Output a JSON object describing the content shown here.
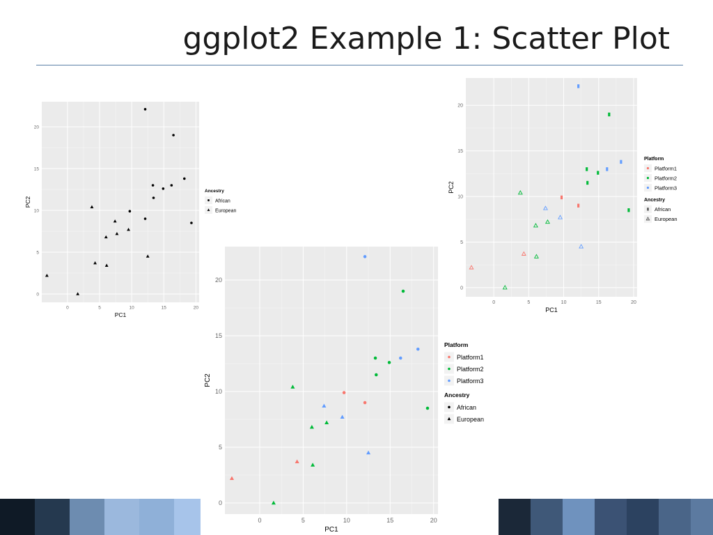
{
  "slide": {
    "title": "ggplot2 Example 1: Scatter Plot"
  },
  "colors": {
    "panel": "#ebebeb",
    "grid": "#ffffff",
    "Platform1": "#f8766d",
    "Platform2": "#00ba38",
    "Platform3": "#619cff",
    "mono": "#000000"
  },
  "chart_data": [
    {
      "id": "plot-bw",
      "type": "scatter",
      "title": "",
      "xlabel": "PC1",
      "ylabel": "PC2",
      "xlim": [
        -4,
        20.5
      ],
      "ylim": [
        -1,
        23
      ],
      "xticks": [
        0,
        5,
        10,
        15,
        20
      ],
      "yticks": [
        0,
        5,
        10,
        15,
        20
      ],
      "grid": true,
      "legend": {
        "placement": "right",
        "groups": [
          {
            "title": "Ancestry",
            "entries": [
              {
                "label": "African",
                "shape": "dot",
                "color": "#000000"
              },
              {
                "label": "European",
                "shape": "triangle",
                "color": "#000000"
              }
            ]
          }
        ]
      },
      "series": [
        {
          "name": "African",
          "shape": "dot",
          "color": "#000000",
          "points": [
            [
              12.1,
              22.1
            ],
            [
              16.5,
              19.0
            ],
            [
              13.3,
              13.0
            ],
            [
              16.2,
              13.0
            ],
            [
              14.9,
              12.6
            ],
            [
              18.2,
              13.8
            ],
            [
              13.4,
              11.5
            ],
            [
              9.7,
              9.9
            ],
            [
              12.1,
              9.0
            ],
            [
              19.3,
              8.5
            ]
          ]
        },
        {
          "name": "European",
          "shape": "triangle",
          "color": "#000000",
          "points": [
            [
              -3.2,
              2.2
            ],
            [
              1.6,
              0.0
            ],
            [
              3.8,
              10.4
            ],
            [
              4.3,
              3.7
            ],
            [
              6.0,
              6.8
            ],
            [
              6.1,
              3.4
            ],
            [
              7.4,
              8.7
            ],
            [
              7.7,
              7.2
            ],
            [
              9.5,
              7.7
            ],
            [
              12.5,
              4.5
            ]
          ]
        }
      ]
    },
    {
      "id": "plot-small-color",
      "type": "scatter",
      "title": "",
      "xlabel": "PC1",
      "ylabel": "PC2",
      "xlim": [
        -4,
        20.5
      ],
      "ylim": [
        -1,
        23
      ],
      "xticks": [
        0,
        5,
        10,
        15,
        20
      ],
      "yticks": [
        0,
        5,
        10,
        15,
        20
      ],
      "grid": true,
      "legend": {
        "placement": "right",
        "groups": [
          {
            "title": "Platform",
            "entries": [
              {
                "label": "Platform1",
                "shape": "dot",
                "color": "#f8766d"
              },
              {
                "label": "Platform2",
                "shape": "dot",
                "color": "#00ba38"
              },
              {
                "label": "Platform3",
                "shape": "dot",
                "color": "#619cff"
              }
            ]
          },
          {
            "title": "Ancestry",
            "entries": [
              {
                "label": "African",
                "shape": "bar",
                "color": "#555555"
              },
              {
                "label": "European",
                "shape": "triangle-open",
                "color": "#555555"
              }
            ]
          }
        ]
      },
      "series": [
        {
          "name": "Platform1 African",
          "shape": "bar",
          "color": "#f8766d",
          "points": [
            [
              9.7,
              9.9
            ],
            [
              12.1,
              9.0
            ]
          ]
        },
        {
          "name": "Platform1 European",
          "shape": "triangle-open",
          "color": "#f8766d",
          "points": [
            [
              -3.2,
              2.2
            ],
            [
              4.3,
              3.7
            ]
          ]
        },
        {
          "name": "Platform2 African",
          "shape": "bar",
          "color": "#00ba38",
          "points": [
            [
              16.5,
              19.0
            ],
            [
              13.3,
              13.0
            ],
            [
              14.9,
              12.6
            ],
            [
              13.4,
              11.5
            ],
            [
              19.3,
              8.5
            ]
          ]
        },
        {
          "name": "Platform2 European",
          "shape": "triangle-open",
          "color": "#00ba38",
          "points": [
            [
              1.6,
              0.0
            ],
            [
              3.8,
              10.4
            ],
            [
              6.0,
              6.8
            ],
            [
              6.1,
              3.4
            ],
            [
              7.7,
              7.2
            ]
          ]
        },
        {
          "name": "Platform3 African",
          "shape": "bar",
          "color": "#619cff",
          "points": [
            [
              12.1,
              22.1
            ],
            [
              16.2,
              13.0
            ],
            [
              18.2,
              13.8
            ]
          ]
        },
        {
          "name": "Platform3 European",
          "shape": "triangle-open",
          "color": "#619cff",
          "points": [
            [
              7.4,
              8.7
            ],
            [
              9.5,
              7.7
            ],
            [
              12.5,
              4.5
            ]
          ]
        }
      ]
    },
    {
      "id": "plot-large-color",
      "type": "scatter",
      "title": "",
      "xlabel": "PC1",
      "ylabel": "PC2",
      "xlim": [
        -4,
        20.5
      ],
      "ylim": [
        -1,
        23
      ],
      "xticks": [
        0,
        5,
        10,
        15,
        20
      ],
      "yticks": [
        0,
        5,
        10,
        15,
        20
      ],
      "grid": true,
      "legend": {
        "placement": "right",
        "groups": [
          {
            "title": "Platform",
            "entries": [
              {
                "label": "Platform1",
                "shape": "dot",
                "color": "#f8766d"
              },
              {
                "label": "Platform2",
                "shape": "dot",
                "color": "#00ba38"
              },
              {
                "label": "Platform3",
                "shape": "dot",
                "color": "#619cff"
              }
            ]
          },
          {
            "title": "Ancestry",
            "entries": [
              {
                "label": "African",
                "shape": "dot",
                "color": "#000000"
              },
              {
                "label": "European",
                "shape": "triangle",
                "color": "#000000"
              }
            ]
          }
        ]
      },
      "series": [
        {
          "name": "Platform1 African",
          "shape": "dot",
          "color": "#f8766d",
          "points": [
            [
              9.7,
              9.9
            ],
            [
              12.1,
              9.0
            ]
          ]
        },
        {
          "name": "Platform1 European",
          "shape": "triangle",
          "color": "#f8766d",
          "points": [
            [
              -3.2,
              2.2
            ],
            [
              4.3,
              3.7
            ]
          ]
        },
        {
          "name": "Platform2 African",
          "shape": "dot",
          "color": "#00ba38",
          "points": [
            [
              16.5,
              19.0
            ],
            [
              13.3,
              13.0
            ],
            [
              14.9,
              12.6
            ],
            [
              13.4,
              11.5
            ],
            [
              19.3,
              8.5
            ]
          ]
        },
        {
          "name": "Platform2 European",
          "shape": "triangle",
          "color": "#00ba38",
          "points": [
            [
              1.6,
              0.0
            ],
            [
              3.8,
              10.4
            ],
            [
              6.0,
              6.8
            ],
            [
              6.1,
              3.4
            ],
            [
              7.7,
              7.2
            ]
          ]
        },
        {
          "name": "Platform3 African",
          "shape": "dot",
          "color": "#619cff",
          "points": [
            [
              12.1,
              22.1
            ],
            [
              16.2,
              13.0
            ],
            [
              18.2,
              13.8
            ]
          ]
        },
        {
          "name": "Platform3 European",
          "shape": "triangle",
          "color": "#619cff",
          "points": [
            [
              7.4,
              8.7
            ],
            [
              9.5,
              7.7
            ],
            [
              12.5,
              4.5
            ]
          ]
        }
      ]
    }
  ]
}
